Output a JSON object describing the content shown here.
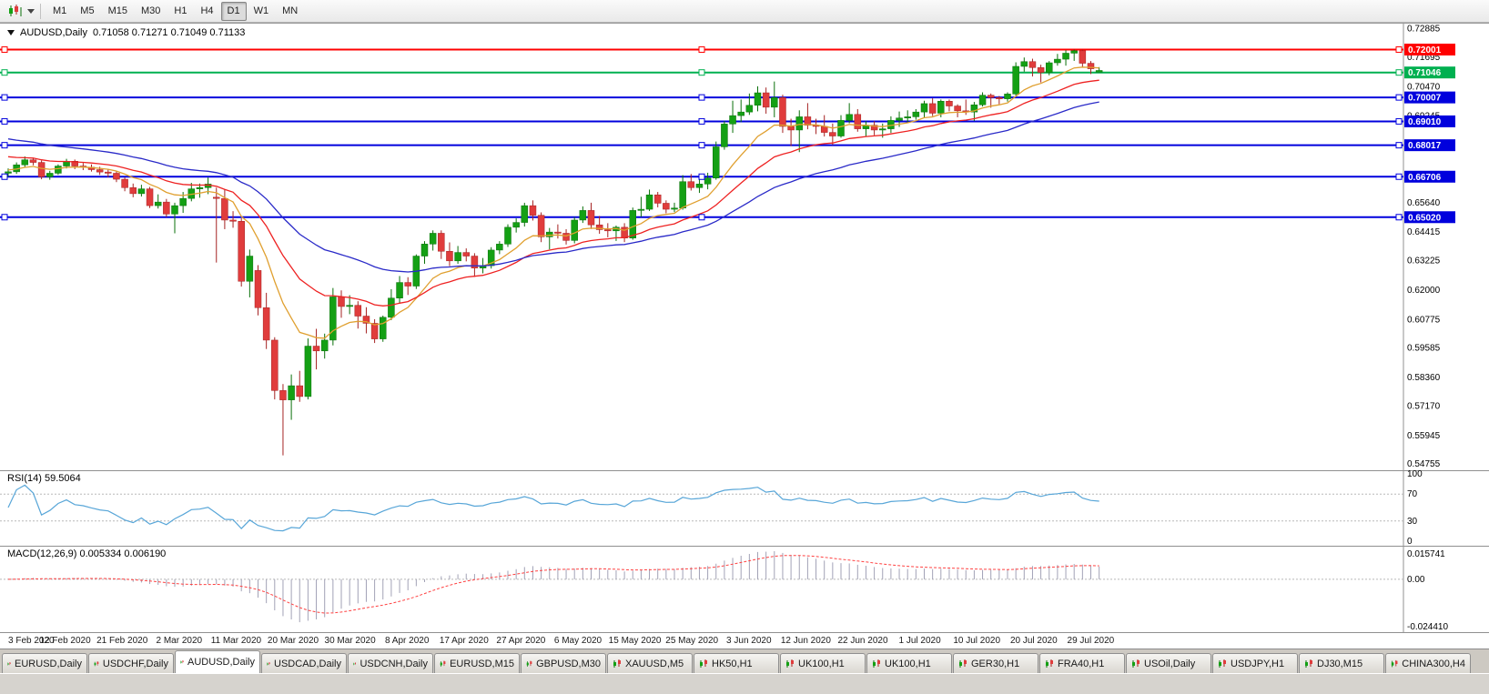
{
  "toolbar": {
    "timeframes": [
      {
        "label": "M1",
        "active": false
      },
      {
        "label": "M5",
        "active": false
      },
      {
        "label": "M15",
        "active": false
      },
      {
        "label": "M30",
        "active": false
      },
      {
        "label": "H1",
        "active": false
      },
      {
        "label": "H4",
        "active": false
      },
      {
        "label": "D1",
        "active": true
      },
      {
        "label": "W1",
        "active": false
      },
      {
        "label": "MN",
        "active": false
      }
    ]
  },
  "chart": {
    "title": {
      "symbol": "AUDUSD,Daily",
      "ohlc": "0.71058 0.71271 0.71049 0.71133"
    }
  },
  "colors": {
    "candle_up": "#14a014",
    "candle_down": "#e03c3c",
    "wick_up": "#0a700a",
    "wick_down": "#a52222",
    "rsi_line": "#58a6d8",
    "macd_hist": "#a2a2b6",
    "macd_signal": "#ff4040",
    "level_red": "#ff0000",
    "level_green": "#00b050",
    "level_blue": "#0000dd",
    "grid_dash": "#b8b8b8",
    "pane_border": "#909090"
  },
  "chart_data": {
    "type": "candlestick",
    "symbol": "AUDUSD",
    "timeframe": "Daily",
    "price_range": {
      "top": 0.7308,
      "bottom": 0.5448
    },
    "y_axis_ticks": [
      0.72885,
      0.71695,
      0.7047,
      0.69245,
      0.6564,
      0.64415,
      0.63225,
      0.62,
      0.60775,
      0.59585,
      0.5836,
      0.5717,
      0.55945,
      0.54755
    ],
    "horizontal_levels": [
      {
        "price": 0.72001,
        "color": "#ff0000",
        "width": 2
      },
      {
        "price": 0.71046,
        "color": "#00b050",
        "width": 2
      },
      {
        "price": 0.70007,
        "color": "#0000dd",
        "width": 2
      },
      {
        "price": 0.6901,
        "color": "#0000dd",
        "width": 2
      },
      {
        "price": 0.68017,
        "color": "#0000dd",
        "width": 2
      },
      {
        "price": 0.66706,
        "color": "#0000dd",
        "width": 2
      },
      {
        "price": 0.6502,
        "color": "#0000dd",
        "width": 2
      }
    ],
    "moving_averages": [
      {
        "name": "fast",
        "period": 10,
        "seed": 0.67,
        "color": "#e0a030"
      },
      {
        "name": "mid",
        "period": 21,
        "seed": 0.676,
        "color": "#ee2222"
      },
      {
        "name": "slow",
        "period": 40,
        "seed": 0.6835,
        "color": "#2a2ac8"
      }
    ],
    "x_labels": [
      "3 Feb 2020",
      "12 Feb 2020",
      "21 Feb 2020",
      "2 Mar 2020",
      "11 Mar 2020",
      "20 Mar 2020",
      "30 Mar 2020",
      "8 Apr 2020",
      "17 Apr 2020",
      "27 Apr 2020",
      "6 May 2020",
      "15 May 2020",
      "25 May 2020",
      "3 Jun 2020",
      "12 Jun 2020",
      "22 Jun 2020",
      "1 Jul 2020",
      "10 Jul 2020",
      "20 Jul 2020",
      "29 Jul 2020"
    ],
    "candles_ohlc": [
      [
        0.6685,
        0.6705,
        0.667,
        0.6691
      ],
      [
        0.6691,
        0.673,
        0.6682,
        0.672
      ],
      [
        0.672,
        0.6755,
        0.671,
        0.6741
      ],
      [
        0.6741,
        0.675,
        0.6718,
        0.673
      ],
      [
        0.673,
        0.6738,
        0.666,
        0.667
      ],
      [
        0.667,
        0.6695,
        0.6658,
        0.6685
      ],
      [
        0.6685,
        0.6722,
        0.6678,
        0.6715
      ],
      [
        0.6715,
        0.6745,
        0.6705,
        0.6735
      ],
      [
        0.6735,
        0.6742,
        0.6702,
        0.6715
      ],
      [
        0.6715,
        0.6728,
        0.6698,
        0.671
      ],
      [
        0.671,
        0.6722,
        0.6692,
        0.67
      ],
      [
        0.67,
        0.6712,
        0.6678,
        0.669
      ],
      [
        0.669,
        0.6702,
        0.6668,
        0.6685
      ],
      [
        0.6685,
        0.6695,
        0.6648,
        0.666
      ],
      [
        0.666,
        0.6668,
        0.661,
        0.6625
      ],
      [
        0.6625,
        0.6642,
        0.6585,
        0.66
      ],
      [
        0.66,
        0.6637,
        0.6588,
        0.662
      ],
      [
        0.662,
        0.6628,
        0.654,
        0.655
      ],
      [
        0.655,
        0.6597,
        0.6538,
        0.6565
      ],
      [
        0.6565,
        0.6578,
        0.6503,
        0.6515
      ],
      [
        0.6515,
        0.6562,
        0.6435,
        0.655
      ],
      [
        0.655,
        0.6607,
        0.652,
        0.658
      ],
      [
        0.658,
        0.6645,
        0.6568,
        0.662
      ],
      [
        0.662,
        0.6642,
        0.6583,
        0.6625
      ],
      [
        0.6625,
        0.6667,
        0.6598,
        0.664
      ],
      [
        0.6585,
        0.6625,
        0.6313,
        0.658
      ],
      [
        0.658,
        0.6617,
        0.6452,
        0.649
      ],
      [
        0.649,
        0.6527,
        0.6458,
        0.6485
      ],
      [
        0.6485,
        0.6497,
        0.6213,
        0.6235
      ],
      [
        0.6235,
        0.6367,
        0.6168,
        0.634
      ],
      [
        0.628,
        0.6302,
        0.6093,
        0.6125
      ],
      [
        0.6125,
        0.6187,
        0.5953,
        0.599
      ],
      [
        0.599,
        0.6002,
        0.5743,
        0.578
      ],
      [
        0.578,
        0.5807,
        0.551,
        0.5741
      ],
      [
        0.5741,
        0.5847,
        0.5658,
        0.58
      ],
      [
        0.58,
        0.5862,
        0.5733,
        0.5755
      ],
      [
        0.5755,
        0.5997,
        0.5743,
        0.5965
      ],
      [
        0.5965,
        0.6037,
        0.5868,
        0.5945
      ],
      [
        0.5945,
        0.6017,
        0.5913,
        0.599
      ],
      [
        0.599,
        0.6207,
        0.5968,
        0.617
      ],
      [
        0.617,
        0.6197,
        0.6083,
        0.613
      ],
      [
        0.613,
        0.6177,
        0.6098,
        0.6135
      ],
      [
        0.6135,
        0.6152,
        0.6038,
        0.609
      ],
      [
        0.609,
        0.6127,
        0.6018,
        0.606
      ],
      [
        0.606,
        0.6077,
        0.5978,
        0.5995
      ],
      [
        0.5995,
        0.6092,
        0.5983,
        0.6085
      ],
      [
        0.6085,
        0.6202,
        0.6073,
        0.6165
      ],
      [
        0.6165,
        0.6257,
        0.6143,
        0.623
      ],
      [
        0.623,
        0.6252,
        0.6178,
        0.6215
      ],
      [
        0.6215,
        0.6347,
        0.6203,
        0.634
      ],
      [
        0.634,
        0.6402,
        0.6308,
        0.639
      ],
      [
        0.639,
        0.6447,
        0.6363,
        0.6435
      ],
      [
        0.6435,
        0.6447,
        0.6328,
        0.636
      ],
      [
        0.636,
        0.6397,
        0.6298,
        0.632
      ],
      [
        0.632,
        0.6382,
        0.6308,
        0.6355
      ],
      [
        0.6355,
        0.6372,
        0.6318,
        0.634
      ],
      [
        0.634,
        0.6352,
        0.6253,
        0.629
      ],
      [
        0.629,
        0.6332,
        0.6268,
        0.63
      ],
      [
        0.63,
        0.6377,
        0.6288,
        0.6365
      ],
      [
        0.6365,
        0.6402,
        0.6348,
        0.639
      ],
      [
        0.639,
        0.6472,
        0.6378,
        0.646
      ],
      [
        0.646,
        0.6497,
        0.6438,
        0.648
      ],
      [
        0.648,
        0.6562,
        0.6463,
        0.655
      ],
      [
        0.655,
        0.6572,
        0.6488,
        0.651
      ],
      [
        0.651,
        0.6522,
        0.6398,
        0.642
      ],
      [
        0.642,
        0.6457,
        0.6368,
        0.644
      ],
      [
        0.644,
        0.6472,
        0.6413,
        0.6435
      ],
      [
        0.6435,
        0.6452,
        0.6388,
        0.6405
      ],
      [
        0.6405,
        0.6502,
        0.6393,
        0.649
      ],
      [
        0.649,
        0.6547,
        0.6478,
        0.653
      ],
      [
        0.653,
        0.6562,
        0.6453,
        0.647
      ],
      [
        0.647,
        0.6507,
        0.6433,
        0.645
      ],
      [
        0.645,
        0.6477,
        0.6418,
        0.6445
      ],
      [
        0.6445,
        0.6467,
        0.6403,
        0.646
      ],
      [
        0.646,
        0.6477,
        0.6398,
        0.6415
      ],
      [
        0.6415,
        0.6542,
        0.6408,
        0.653
      ],
      [
        0.653,
        0.6587,
        0.6503,
        0.6535
      ],
      [
        0.6535,
        0.6617,
        0.6528,
        0.6595
      ],
      [
        0.6595,
        0.6607,
        0.6543,
        0.656
      ],
      [
        0.656,
        0.6572,
        0.6518,
        0.6535
      ],
      [
        0.6535,
        0.6562,
        0.6523,
        0.654
      ],
      [
        0.654,
        0.6677,
        0.6533,
        0.665
      ],
      [
        0.665,
        0.6682,
        0.6613,
        0.6625
      ],
      [
        0.6625,
        0.6667,
        0.6603,
        0.664
      ],
      [
        0.664,
        0.6687,
        0.6618,
        0.6665
      ],
      [
        0.6665,
        0.6817,
        0.6658,
        0.6795
      ],
      [
        0.6795,
        0.6902,
        0.6783,
        0.689
      ],
      [
        0.689,
        0.6987,
        0.6853,
        0.6925
      ],
      [
        0.6925,
        0.6992,
        0.6898,
        0.694
      ],
      [
        0.694,
        0.7017,
        0.6928,
        0.6968
      ],
      [
        0.6968,
        0.7047,
        0.6943,
        0.702
      ],
      [
        0.702,
        0.7042,
        0.6933,
        0.696
      ],
      [
        0.696,
        0.7067,
        0.6918,
        0.7
      ],
      [
        0.7,
        0.7012,
        0.6853,
        0.688
      ],
      [
        0.688,
        0.6912,
        0.6798,
        0.6865
      ],
      [
        0.6865,
        0.6947,
        0.6773,
        0.692
      ],
      [
        0.692,
        0.6977,
        0.6868,
        0.6885
      ],
      [
        0.6885,
        0.6912,
        0.6848,
        0.688
      ],
      [
        0.688,
        0.6927,
        0.6838,
        0.6855
      ],
      [
        0.6855,
        0.6892,
        0.6803,
        0.684
      ],
      [
        0.684,
        0.6927,
        0.6833,
        0.6905
      ],
      [
        0.6905,
        0.6977,
        0.6893,
        0.693
      ],
      [
        0.693,
        0.6952,
        0.6858,
        0.687
      ],
      [
        0.687,
        0.6902,
        0.6838,
        0.6885
      ],
      [
        0.6885,
        0.6902,
        0.6843,
        0.6865
      ],
      [
        0.6865,
        0.6892,
        0.6833,
        0.687
      ],
      [
        0.687,
        0.6922,
        0.6853,
        0.6905
      ],
      [
        0.6905,
        0.6942,
        0.6878,
        0.6915
      ],
      [
        0.6915,
        0.6947,
        0.6898,
        0.692
      ],
      [
        0.692,
        0.6952,
        0.6908,
        0.694
      ],
      [
        0.694,
        0.6987,
        0.6918,
        0.6975
      ],
      [
        0.6975,
        0.6997,
        0.6923,
        0.6935
      ],
      [
        0.6935,
        0.6992,
        0.6918,
        0.6985
      ],
      [
        0.6985,
        0.6992,
        0.6943,
        0.6965
      ],
      [
        0.6965,
        0.6972,
        0.6918,
        0.6945
      ],
      [
        0.6945,
        0.6992,
        0.6928,
        0.694
      ],
      [
        0.694,
        0.6982,
        0.6903,
        0.697
      ],
      [
        0.697,
        0.7022,
        0.6963,
        0.701
      ],
      [
        0.701,
        0.7017,
        0.6958,
        0.7
      ],
      [
        0.7,
        0.7007,
        0.6973,
        0.6995
      ],
      [
        0.6995,
        0.7022,
        0.6983,
        0.7015
      ],
      [
        0.7015,
        0.7147,
        0.7008,
        0.713
      ],
      [
        0.713,
        0.7167,
        0.7108,
        0.715
      ],
      [
        0.715,
        0.7162,
        0.7088,
        0.7125
      ],
      [
        0.7125,
        0.7137,
        0.7063,
        0.7105
      ],
      [
        0.7105,
        0.7152,
        0.7093,
        0.7145
      ],
      [
        0.7145,
        0.7182,
        0.7133,
        0.716
      ],
      [
        0.716,
        0.7197,
        0.7133,
        0.7185
      ],
      [
        0.7185,
        0.72,
        0.7153,
        0.7195
      ],
      [
        0.7195,
        0.72,
        0.7128,
        0.7143
      ],
      [
        0.7143,
        0.7152,
        0.7098,
        0.712
      ],
      [
        0.7106,
        0.7127,
        0.7105,
        0.7113
      ]
    ],
    "indicators": {
      "rsi": {
        "name": "RSI(14)",
        "period": 14,
        "current": "59.5064",
        "levels": [
          100,
          70,
          30,
          0
        ],
        "range": [
          0,
          100
        ]
      },
      "macd": {
        "name": "MACD(12,26,9)",
        "fast": 12,
        "slow": 26,
        "signal": 9,
        "current": "0.005334 0.006190",
        "range": [
          -0.02441,
          0.015741
        ],
        "axis_labels": [
          "0.015741",
          "0.00",
          "-0.024410"
        ]
      }
    }
  },
  "tabs": [
    {
      "label": "EURUSD,Daily",
      "active": false
    },
    {
      "label": "USDCHF,Daily",
      "active": false
    },
    {
      "label": "AUDUSD,Daily",
      "active": true
    },
    {
      "label": "USDCAD,Daily",
      "active": false
    },
    {
      "label": "USDCNH,Daily",
      "active": false
    },
    {
      "label": "EURUSD,M15",
      "active": false
    },
    {
      "label": "GBPUSD,M30",
      "active": false
    },
    {
      "label": "XAUUSD,M5",
      "active": false
    },
    {
      "label": "HK50,H1",
      "active": false
    },
    {
      "label": "UK100,H1",
      "active": false
    },
    {
      "label": "UK100,H1",
      "active": false
    },
    {
      "label": "GER30,H1",
      "active": false
    },
    {
      "label": "FRA40,H1",
      "active": false
    },
    {
      "label": "USOil,Daily",
      "active": false
    },
    {
      "label": "USDJPY,H1",
      "active": false
    },
    {
      "label": "DJ30,M15",
      "active": false
    },
    {
      "label": "CHINA300,H4",
      "active": false
    }
  ]
}
